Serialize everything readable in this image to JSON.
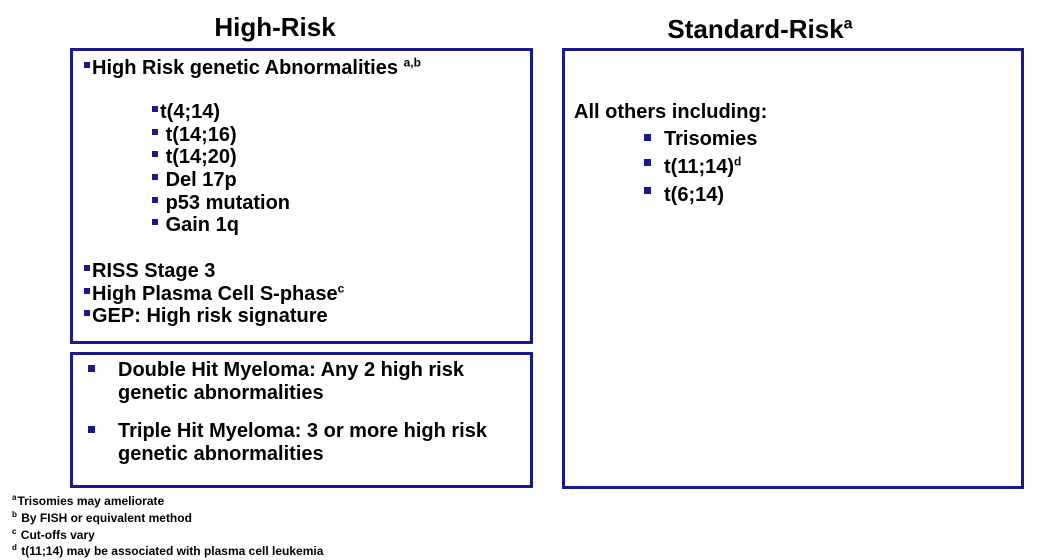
{
  "high_risk": {
    "heading": "High-Risk",
    "title": "High Risk genetic Abnormalities",
    "title_sup": "a,b",
    "abnormalities": [
      "t(4;14)",
      "t(14;16)",
      "t(14;20)",
      "Del 17p",
      "p53 mutation",
      "Gain 1q"
    ],
    "riss": "RISS Stage 3",
    "s_phase": "High Plasma Cell S-phase",
    "s_phase_sup": "c",
    "gep": "GEP: High risk signature"
  },
  "hit_box": {
    "double_line1": "Double Hit Myeloma: Any 2 high risk",
    "double_line2": "genetic abnormalities",
    "triple_line1": "Triple Hit Myeloma: 3 or more high risk",
    "triple_line2": "genetic abnormalities"
  },
  "standard_risk": {
    "heading": "Standard-Risk",
    "heading_sup": "a",
    "intro": "All others including:",
    "items": [
      {
        "text": "Trisomies",
        "sup": ""
      },
      {
        "text": "t(11;14)",
        "sup": "d"
      },
      {
        "text": "t(6;14)",
        "sup": ""
      }
    ]
  },
  "footnotes": [
    {
      "mark": "a",
      "text": "Trisomies may ameliorate"
    },
    {
      "mark": "b",
      "text": "By FISH or equivalent method"
    },
    {
      "mark": "c",
      "text": "Cut-offs vary"
    },
    {
      "mark": "d",
      "text": "t(11;14) may be associated with plasma cell leukemia"
    }
  ],
  "colors": {
    "border": "#1a1a8c",
    "bullet": "#1a1a8c"
  }
}
